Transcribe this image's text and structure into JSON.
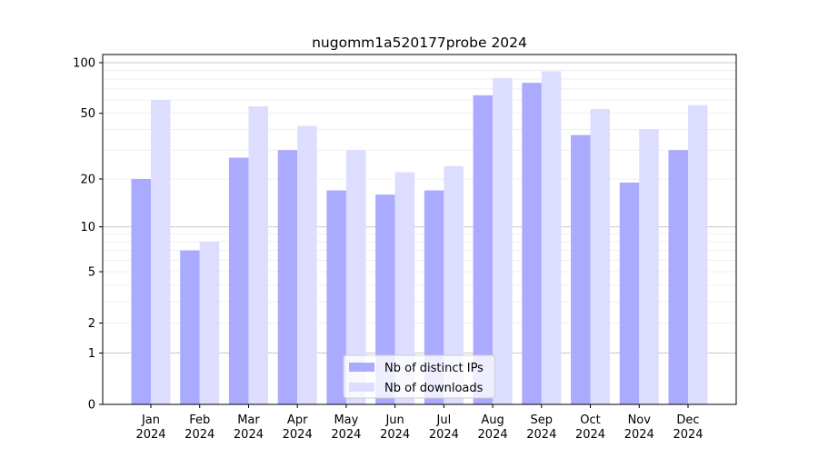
{
  "chart_data": {
    "type": "bar",
    "title": "nugomm1a520177probe 2024",
    "xlabel": "",
    "ylabel": "",
    "y_scale": "log(1+y)",
    "ylim": [
      0,
      100
    ],
    "yticks": [
      0,
      1,
      2,
      5,
      10,
      20,
      50,
      100
    ],
    "grid": true,
    "legend_position": "lower-center",
    "categories": [
      "Jan\n2024",
      "Feb\n2024",
      "Mar\n2024",
      "Apr\n2024",
      "May\n2024",
      "Jun\n2024",
      "Jul\n2024",
      "Aug\n2024",
      "Sep\n2024",
      "Oct\n2024",
      "Nov\n2024",
      "Dec\n2024"
    ],
    "series": [
      {
        "name": "Nb of distinct IPs",
        "color": "#aaaaff",
        "values": [
          20,
          7,
          27,
          30,
          17,
          16,
          17,
          64,
          76,
          37,
          19,
          30
        ]
      },
      {
        "name": "Nb of downloads",
        "color": "#ddddff",
        "values": [
          60,
          8,
          55,
          42,
          30,
          22,
          24,
          81,
          89,
          53,
          40,
          56
        ]
      }
    ]
  }
}
